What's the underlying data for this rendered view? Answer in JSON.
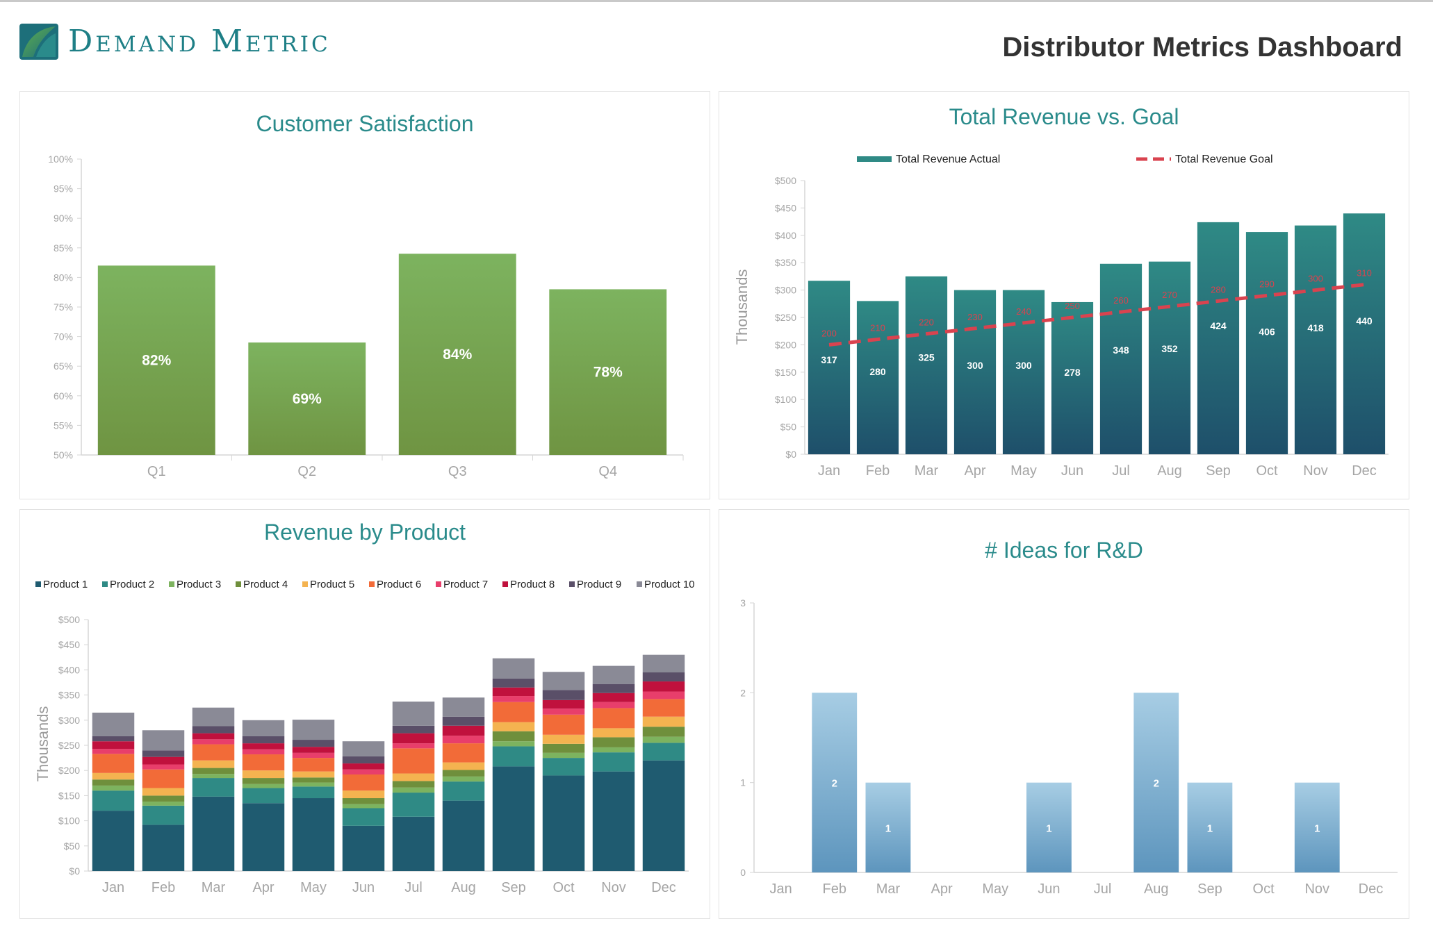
{
  "header": {
    "logo_text": "Demand Metric",
    "dashboard_title": "Distributor Metrics Dashboard"
  },
  "colors": {
    "teal_title": "#2a8b8b",
    "green_bar_top": "#7db35f",
    "green_bar_bottom": "#6f9442",
    "teal_bar_top": "#2f8a85",
    "teal_bar_bottom": "#1e4f6a",
    "goal_line": "#d9434f",
    "blue_bar_top": "#a7cde4",
    "blue_bar_bottom": "#5d95bd"
  },
  "panels": {
    "satisfaction_title": "Customer Satisfaction",
    "revenue_goal_title": "Total Revenue vs. Goal",
    "product_title": "Revenue by Product",
    "ideas_title": "# Ideas for R&D"
  },
  "chart_data": [
    {
      "id": "customer-satisfaction",
      "type": "bar",
      "title": "Customer Satisfaction",
      "categories": [
        "Q1",
        "Q2",
        "Q3",
        "Q4"
      ],
      "values": [
        82,
        69,
        84,
        78
      ],
      "data_labels": [
        "82%",
        "69%",
        "84%",
        "78%"
      ],
      "ylim": [
        50,
        100
      ],
      "yticks": [
        "50%",
        "55%",
        "60%",
        "65%",
        "70%",
        "75%",
        "80%",
        "85%",
        "90%",
        "95%",
        "100%"
      ],
      "grid": false
    },
    {
      "id": "total-revenue-vs-goal",
      "type": "bar",
      "title": "Total Revenue vs. Goal",
      "ylabel": "Thousands",
      "categories": [
        "Jan",
        "Feb",
        "Mar",
        "Apr",
        "May",
        "Jun",
        "Jul",
        "Aug",
        "Sep",
        "Oct",
        "Nov",
        "Dec"
      ],
      "series": [
        {
          "name": "Total Revenue Actual",
          "kind": "bar",
          "values": [
            317,
            280,
            325,
            300,
            300,
            278,
            348,
            352,
            424,
            406,
            418,
            440
          ]
        },
        {
          "name": "Total Revenue Goal",
          "kind": "line-dashed",
          "values": [
            200,
            210,
            220,
            230,
            240,
            250,
            260,
            270,
            280,
            290,
            300,
            310
          ]
        }
      ],
      "ylim": [
        0,
        500
      ],
      "yticks": [
        "$0",
        "$50",
        "$100",
        "$150",
        "$200",
        "$250",
        "$300",
        "$350",
        "$400",
        "$450",
        "$500"
      ],
      "legend": "top",
      "grid": false
    },
    {
      "id": "revenue-by-product",
      "type": "bar",
      "stacked": true,
      "title": "Revenue by Product",
      "ylabel": "Thousands",
      "categories": [
        "Jan",
        "Feb",
        "Mar",
        "Apr",
        "May",
        "Jun",
        "Jul",
        "Aug",
        "Sep",
        "Oct",
        "Nov",
        "Dec"
      ],
      "series": [
        {
          "name": "Product 1",
          "color": "#1f5b70",
          "values": [
            120,
            92,
            148,
            135,
            145,
            90,
            108,
            140,
            208,
            190,
            198,
            220
          ]
        },
        {
          "name": "Product 2",
          "color": "#2f8a85",
          "values": [
            40,
            38,
            37,
            30,
            23,
            35,
            48,
            38,
            40,
            35,
            38,
            35
          ]
        },
        {
          "name": "Product 3",
          "color": "#7db35f",
          "values": [
            10,
            8,
            8,
            8,
            8,
            8,
            10,
            10,
            10,
            10,
            10,
            12
          ]
        },
        {
          "name": "Product 4",
          "color": "#6f8f3c",
          "values": [
            12,
            12,
            12,
            12,
            10,
            12,
            13,
            13,
            20,
            18,
            20,
            20
          ]
        },
        {
          "name": "Product 5",
          "color": "#f4b350",
          "values": [
            13,
            15,
            15,
            15,
            12,
            15,
            15,
            15,
            18,
            18,
            18,
            20
          ]
        },
        {
          "name": "Product 6",
          "color": "#f26b38",
          "values": [
            38,
            37,
            32,
            32,
            27,
            32,
            50,
            38,
            40,
            40,
            40,
            35
          ]
        },
        {
          "name": "Product 7",
          "color": "#e83e6b",
          "values": [
            10,
            10,
            10,
            10,
            10,
            10,
            10,
            15,
            12,
            12,
            12,
            15
          ]
        },
        {
          "name": "Product 8",
          "color": "#c0113d",
          "values": [
            15,
            15,
            12,
            12,
            12,
            12,
            20,
            20,
            17,
            17,
            18,
            20
          ]
        },
        {
          "name": "Product 9",
          "color": "#5a4f68",
          "values": [
            10,
            13,
            14,
            14,
            14,
            14,
            15,
            18,
            18,
            20,
            18,
            18
          ]
        },
        {
          "name": "Product 10",
          "color": "#8a8a96",
          "values": [
            47,
            40,
            37,
            32,
            40,
            30,
            48,
            38,
            40,
            36,
            36,
            35
          ]
        }
      ],
      "ylim": [
        0,
        500
      ],
      "yticks": [
        "$0",
        "$50",
        "$100",
        "$150",
        "$200",
        "$250",
        "$300",
        "$350",
        "$400",
        "$450",
        "$500"
      ],
      "legend": "top",
      "grid": false
    },
    {
      "id": "ideas-for-rd",
      "type": "bar",
      "title": "# Ideas for R&D",
      "categories": [
        "Jan",
        "Feb",
        "Mar",
        "Apr",
        "May",
        "Jun",
        "Jul",
        "Aug",
        "Sep",
        "Oct",
        "Nov",
        "Dec"
      ],
      "values": [
        0,
        2,
        1,
        0,
        0,
        1,
        0,
        2,
        1,
        0,
        1,
        0
      ],
      "ylim": [
        0,
        3
      ],
      "yticks": [
        "0",
        "1",
        "2",
        "3"
      ],
      "grid": false
    }
  ]
}
